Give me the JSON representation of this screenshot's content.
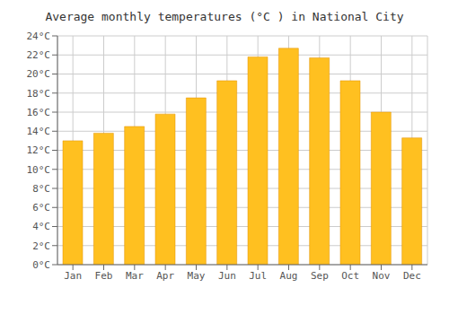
{
  "chart_data": {
    "type": "bar",
    "title": "Average monthly temperatures (°C ) in National City",
    "categories": [
      "Jan",
      "Feb",
      "Mar",
      "Apr",
      "May",
      "Jun",
      "Jul",
      "Aug",
      "Sep",
      "Oct",
      "Nov",
      "Dec"
    ],
    "values": [
      13.0,
      13.8,
      14.5,
      15.8,
      17.5,
      19.3,
      21.8,
      22.7,
      21.7,
      19.3,
      16.0,
      13.3
    ],
    "color": "#FFC020",
    "ylim": [
      0,
      24
    ],
    "yticks": [
      {
        "value": 0,
        "label": "0°C"
      },
      {
        "value": 2,
        "label": "2°C"
      },
      {
        "value": 4,
        "label": "4°C"
      },
      {
        "value": 6,
        "label": "6°C"
      },
      {
        "value": 8,
        "label": "8°C"
      },
      {
        "value": 10,
        "label": "10°C"
      },
      {
        "value": 12,
        "label": "12°C"
      },
      {
        "value": 14,
        "label": "14°C"
      },
      {
        "value": 16,
        "label": "16°C"
      },
      {
        "value": 18,
        "label": "18°C"
      },
      {
        "value": 20,
        "label": "20°C"
      },
      {
        "value": 22,
        "label": "22°C"
      },
      {
        "value": 24,
        "label": "24°C"
      }
    ],
    "grid": true
  }
}
